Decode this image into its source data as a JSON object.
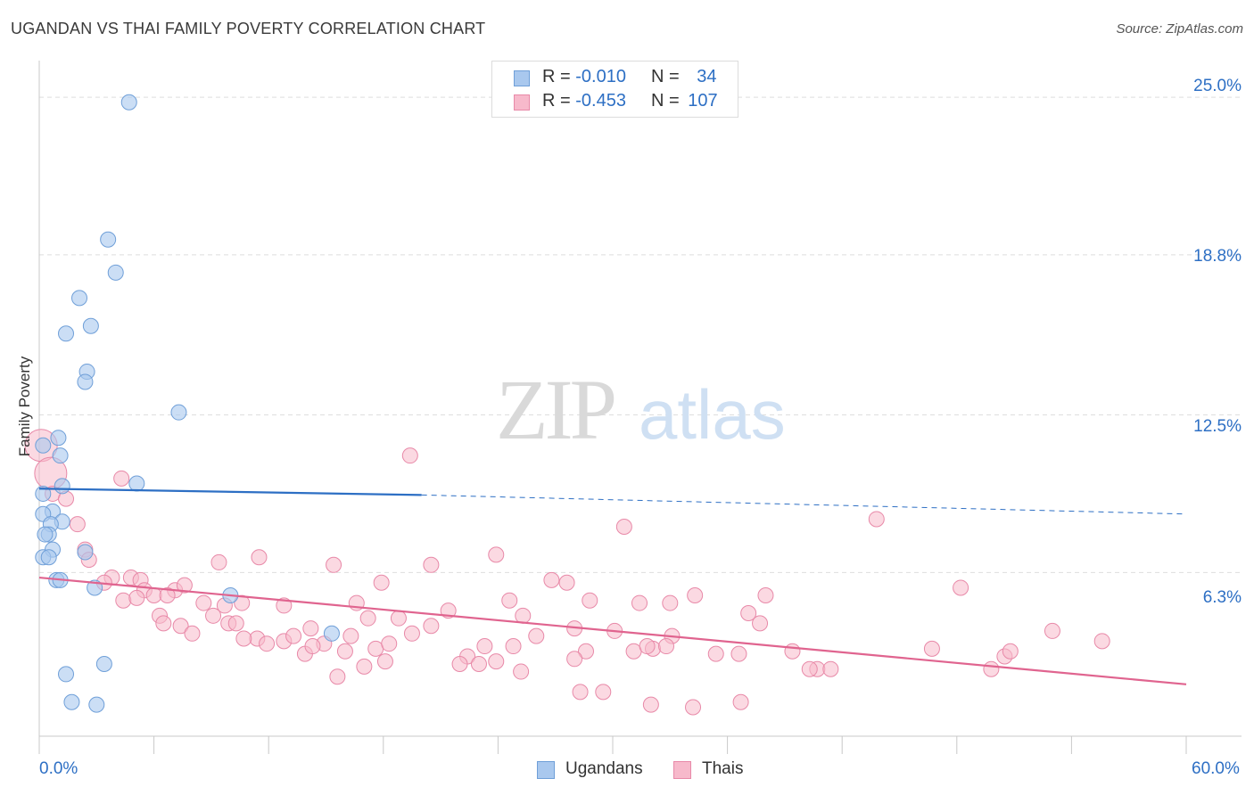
{
  "title": "UGANDAN VS THAI FAMILY POVERTY CORRELATION CHART",
  "source": "Source: ZipAtlas.com",
  "watermark": {
    "zip": "ZIP",
    "atlas": "atlas"
  },
  "legend_top": {
    "rows": [
      {
        "r_label": "R = ",
        "r_value": "-0.010",
        "n_label": "N = ",
        "n_value": "34"
      },
      {
        "r_label": "R = ",
        "r_value": "-0.453",
        "n_label": "N = ",
        "n_value": "107"
      }
    ]
  },
  "legend_bottom": {
    "items": [
      "Ugandans",
      "Thais"
    ]
  },
  "colors": {
    "ugandan_fill": "#a9c8ee",
    "ugandan_stroke": "#6f9fd8",
    "ugandan_line": "#2d6fc4",
    "thai_fill": "#f7b9cb",
    "thai_stroke": "#e889a8",
    "thai_line": "#e0648f",
    "tick_label": "#2d6fc4",
    "grid": "#dedede"
  },
  "chart_data": {
    "type": "scatter",
    "title": "UGANDAN VS THAI FAMILY POVERTY CORRELATION CHART",
    "ylabel": "Family Poverty",
    "xlabel": "",
    "xlim": [
      0,
      60
    ],
    "ylim": [
      0,
      26.3
    ],
    "x_tick_labels": [
      "0.0%",
      "60.0%"
    ],
    "y_ticks": [
      6.3,
      12.5,
      18.8,
      25.0
    ],
    "y_tick_labels": [
      "6.3%",
      "12.5%",
      "18.8%",
      "25.0%"
    ],
    "grid": "horizontal dashed",
    "legend": "top-center",
    "series": [
      {
        "name": "Ugandans",
        "r": -0.01,
        "n": 34,
        "trend": {
          "x0": 0,
          "y0": 9.6,
          "x1": 20,
          "y1": 9.35,
          "x_dash_end": 60,
          "y_dash_end": 8.6
        },
        "points": [
          [
            4.7,
            24.8
          ],
          [
            3.6,
            19.4
          ],
          [
            4.0,
            18.1
          ],
          [
            2.1,
            17.1
          ],
          [
            2.7,
            16.0
          ],
          [
            1.4,
            15.7
          ],
          [
            2.5,
            14.2
          ],
          [
            2.4,
            13.8
          ],
          [
            7.3,
            12.6
          ],
          [
            1.0,
            11.6
          ],
          [
            0.2,
            11.3
          ],
          [
            1.1,
            10.9
          ],
          [
            5.1,
            9.8
          ],
          [
            1.2,
            9.7
          ],
          [
            0.2,
            9.4
          ],
          [
            0.7,
            8.7
          ],
          [
            0.2,
            8.6
          ],
          [
            1.2,
            8.3
          ],
          [
            0.6,
            8.2
          ],
          [
            0.5,
            7.8
          ],
          [
            0.3,
            7.8
          ],
          [
            0.7,
            7.2
          ],
          [
            2.4,
            7.1
          ],
          [
            0.2,
            6.9
          ],
          [
            0.5,
            6.9
          ],
          [
            0.9,
            6.0
          ],
          [
            1.1,
            6.0
          ],
          [
            2.9,
            5.7
          ],
          [
            10.0,
            5.4
          ],
          [
            15.3,
            3.9
          ],
          [
            1.4,
            2.3
          ],
          [
            3.4,
            2.7
          ],
          [
            1.7,
            1.2
          ],
          [
            3.0,
            1.1
          ]
        ]
      },
      {
        "name": "Thais",
        "r": -0.453,
        "n": 107,
        "trend": {
          "x0": 0,
          "y0": 6.1,
          "x1": 60,
          "y1": 1.9
        },
        "points": [
          [
            0.1,
            11.3
          ],
          [
            0.6,
            10.2
          ],
          [
            19.4,
            10.9
          ],
          [
            4.3,
            10.0
          ],
          [
            0.7,
            9.4
          ],
          [
            1.4,
            9.2
          ],
          [
            2.0,
            8.2
          ],
          [
            30.6,
            8.1
          ],
          [
            43.8,
            8.4
          ],
          [
            2.4,
            7.2
          ],
          [
            2.6,
            6.8
          ],
          [
            11.5,
            6.9
          ],
          [
            15.4,
            6.6
          ],
          [
            20.5,
            6.6
          ],
          [
            23.9,
            7.0
          ],
          [
            9.4,
            6.7
          ],
          [
            3.8,
            6.1
          ],
          [
            4.8,
            6.1
          ],
          [
            5.3,
            6.0
          ],
          [
            3.4,
            5.9
          ],
          [
            5.5,
            5.6
          ],
          [
            6.0,
            5.4
          ],
          [
            7.1,
            5.6
          ],
          [
            7.6,
            5.8
          ],
          [
            4.4,
            5.2
          ],
          [
            5.1,
            5.3
          ],
          [
            6.7,
            5.4
          ],
          [
            8.6,
            5.1
          ],
          [
            9.7,
            5.0
          ],
          [
            10.6,
            5.1
          ],
          [
            12.8,
            5.0
          ],
          [
            16.6,
            5.1
          ],
          [
            17.9,
            5.9
          ],
          [
            21.4,
            4.8
          ],
          [
            24.6,
            5.2
          ],
          [
            25.3,
            4.6
          ],
          [
            26.8,
            6.0
          ],
          [
            27.6,
            5.9
          ],
          [
            28.8,
            5.2
          ],
          [
            31.4,
            5.1
          ],
          [
            33.0,
            5.1
          ],
          [
            34.3,
            5.4
          ],
          [
            38.0,
            5.4
          ],
          [
            37.1,
            4.7
          ],
          [
            48.2,
            5.7
          ],
          [
            6.3,
            4.6
          ],
          [
            6.5,
            4.3
          ],
          [
            7.4,
            4.2
          ],
          [
            8.0,
            3.9
          ],
          [
            9.1,
            4.6
          ],
          [
            9.9,
            4.3
          ],
          [
            10.3,
            4.3
          ],
          [
            11.4,
            3.7
          ],
          [
            11.9,
            3.5
          ],
          [
            12.8,
            3.6
          ],
          [
            13.3,
            3.8
          ],
          [
            14.2,
            4.1
          ],
          [
            14.9,
            3.5
          ],
          [
            16.3,
            3.8
          ],
          [
            17.2,
            4.5
          ],
          [
            18.8,
            4.5
          ],
          [
            19.5,
            3.9
          ],
          [
            20.5,
            4.2
          ],
          [
            22.4,
            3.0
          ],
          [
            23.3,
            3.4
          ],
          [
            24.8,
            3.4
          ],
          [
            26.0,
            3.8
          ],
          [
            28.0,
            4.1
          ],
          [
            28.6,
            3.2
          ],
          [
            30.1,
            4.0
          ],
          [
            31.1,
            3.2
          ],
          [
            32.1,
            3.3
          ],
          [
            33.1,
            3.8
          ],
          [
            35.4,
            3.1
          ],
          [
            36.6,
            3.1
          ],
          [
            37.7,
            4.3
          ],
          [
            39.4,
            3.2
          ],
          [
            13.9,
            3.1
          ],
          [
            16.0,
            3.2
          ],
          [
            17.6,
            3.3
          ],
          [
            18.3,
            3.5
          ],
          [
            22.0,
            2.7
          ],
          [
            23.0,
            2.7
          ],
          [
            23.9,
            2.8
          ],
          [
            25.2,
            2.4
          ],
          [
            17.0,
            2.6
          ],
          [
            18.1,
            2.8
          ],
          [
            15.6,
            2.2
          ],
          [
            14.3,
            3.4
          ],
          [
            28.0,
            2.9
          ],
          [
            31.8,
            3.4
          ],
          [
            32.8,
            3.4
          ],
          [
            40.7,
            2.5
          ],
          [
            41.4,
            2.5
          ],
          [
            46.7,
            3.3
          ],
          [
            49.8,
            2.5
          ],
          [
            50.5,
            3.0
          ],
          [
            50.8,
            3.2
          ],
          [
            53.0,
            4.0
          ],
          [
            55.6,
            3.6
          ],
          [
            28.3,
            1.6
          ],
          [
            29.5,
            1.6
          ],
          [
            32.0,
            1.1
          ],
          [
            34.2,
            1.0
          ],
          [
            36.7,
            1.2
          ],
          [
            40.3,
            2.5
          ],
          [
            10.7,
            3.7
          ]
        ]
      }
    ]
  }
}
